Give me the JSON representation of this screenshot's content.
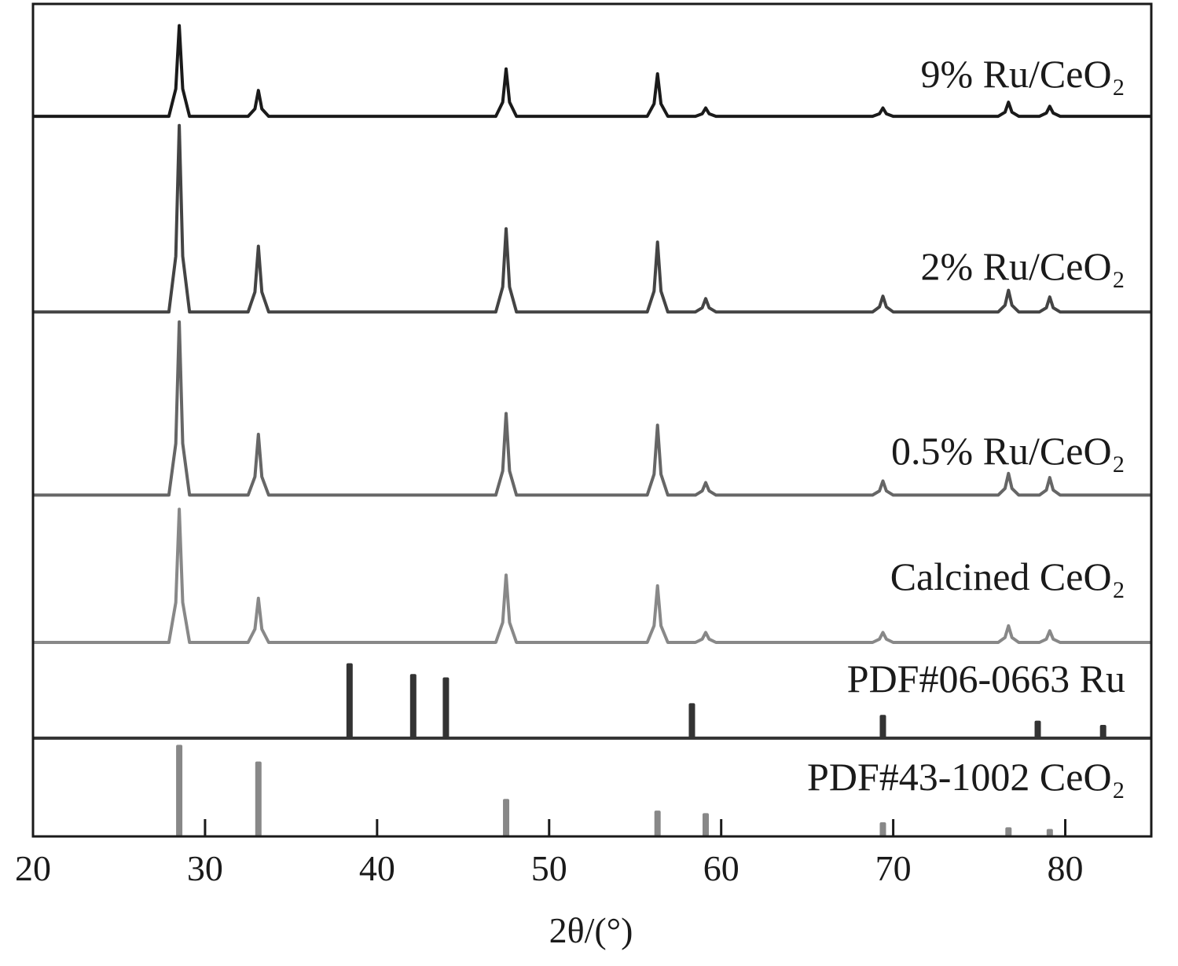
{
  "chart_data": {
    "type": "line",
    "x_label": "2θ/(°)",
    "xlim": [
      20,
      85
    ],
    "xticks": [
      20,
      30,
      40,
      50,
      60,
      70,
      80
    ],
    "ylim": [
      0,
      100
    ],
    "x": [
      20,
      27.9,
      28.3,
      28.5,
      28.7,
      29.1,
      32.5,
      32.9,
      33.1,
      33.3,
      33.7,
      46.9,
      47.3,
      47.5,
      47.7,
      48.1,
      55.7,
      56.1,
      56.3,
      56.5,
      56.9,
      58.5,
      58.9,
      59.1,
      59.3,
      59.7,
      68.8,
      69.2,
      69.4,
      69.6,
      70.0,
      76.1,
      76.5,
      76.7,
      76.9,
      77.3,
      78.5,
      78.9,
      79.1,
      79.3,
      79.7,
      85
    ],
    "series": [
      {
        "name": "9% Ru/CeO₂",
        "type": "line",
        "color": "#1a1a1a",
        "values": [
          86.5,
          86.5,
          89.8,
          97.4,
          89.8,
          86.5,
          86.5,
          87.4,
          89.6,
          87.4,
          86.5,
          86.5,
          88.2,
          92.2,
          88.2,
          86.5,
          86.5,
          88.0,
          91.6,
          88.0,
          86.5,
          86.5,
          86.8,
          87.5,
          86.8,
          86.5,
          86.5,
          86.8,
          87.5,
          86.8,
          86.5,
          86.5,
          87.0,
          88.2,
          87.0,
          86.5,
          86.5,
          86.9,
          87.7,
          86.9,
          86.5,
          86.5
        ]
      },
      {
        "name": "2% Ru/CeO₂",
        "type": "line",
        "color": "#444444",
        "values": [
          63.0,
          63.0,
          69.7,
          85.4,
          69.7,
          63.0,
          63.0,
          65.4,
          70.9,
          65.4,
          63.0,
          63.0,
          66.0,
          73.0,
          66.0,
          63.0,
          63.0,
          65.5,
          71.4,
          65.5,
          63.0,
          63.0,
          63.5,
          64.6,
          63.5,
          63.0,
          63.0,
          63.6,
          64.9,
          63.6,
          63.0,
          63.0,
          63.8,
          65.6,
          63.8,
          63.0,
          63.0,
          63.5,
          64.8,
          63.5,
          63.0,
          63.0
        ]
      },
      {
        "name": "0.5% Ru/CeO₂",
        "type": "line",
        "color": "#666666",
        "values": [
          41.0,
          41.0,
          47.2,
          61.8,
          47.2,
          41.0,
          41.0,
          43.2,
          48.3,
          43.2,
          41.0,
          41.0,
          43.9,
          50.8,
          43.9,
          41.0,
          41.0,
          43.5,
          49.4,
          43.5,
          41.0,
          41.0,
          41.5,
          42.5,
          41.5,
          41.0,
          41.0,
          41.5,
          42.7,
          41.5,
          41.0,
          41.0,
          41.8,
          43.6,
          41.8,
          41.0,
          41.0,
          41.6,
          43.1,
          41.6,
          41.0,
          41.0
        ]
      },
      {
        "name": "Calcined CeO₂",
        "type": "line",
        "color": "#888888",
        "values": [
          23.3,
          23.3,
          28.1,
          39.3,
          28.1,
          23.3,
          23.3,
          24.9,
          28.6,
          24.9,
          23.3,
          23.3,
          25.7,
          31.4,
          25.7,
          23.3,
          23.3,
          25.3,
          30.1,
          25.3,
          23.3,
          23.3,
          23.7,
          24.5,
          23.7,
          23.3,
          23.3,
          23.7,
          24.5,
          23.7,
          23.3,
          23.3,
          23.9,
          25.3,
          23.9,
          23.3,
          23.3,
          23.7,
          24.7,
          23.7,
          23.3,
          23.3
        ]
      },
      {
        "name": "PDF#06-0663 Ru",
        "type": "stick",
        "color": "#333333",
        "baseline": 11.8,
        "x": [
          38.4,
          42.1,
          44.0,
          58.3,
          69.4,
          78.4,
          82.2
        ],
        "values": [
          20.8,
          19.5,
          19.1,
          16.0,
          14.6,
          13.9,
          13.4
        ]
      },
      {
        "name": "PDF#43-1002 CeO₂",
        "type": "stick",
        "color": "#888888",
        "baseline": 0,
        "x": [
          28.5,
          33.1,
          47.5,
          56.3,
          59.1,
          69.4,
          76.7,
          79.1
        ],
        "values": [
          11.0,
          9.0,
          4.5,
          3.1,
          2.8,
          1.7,
          1.1,
          0.9
        ]
      }
    ]
  }
}
